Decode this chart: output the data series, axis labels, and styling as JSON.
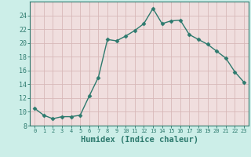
{
  "xlabel": "Humidex (Indice chaleur)",
  "x": [
    0,
    1,
    2,
    3,
    4,
    5,
    6,
    7,
    8,
    9,
    10,
    11,
    12,
    13,
    14,
    15,
    16,
    17,
    18,
    19,
    20,
    21,
    22,
    23
  ],
  "y": [
    10.5,
    9.5,
    9.0,
    9.3,
    9.3,
    9.5,
    12.3,
    15.0,
    20.5,
    20.3,
    21.0,
    21.8,
    22.8,
    25.0,
    22.8,
    23.2,
    23.3,
    21.2,
    20.5,
    19.8,
    18.8,
    17.8,
    15.8,
    14.3
  ],
  "line_color": "#2d7a6e",
  "marker": "D",
  "marker_size": 2.5,
  "linewidth": 1.0,
  "fig_bg_color": "#cceee8",
  "plot_bg_color": "#f0dede",
  "grid_color": "#d8b8b8",
  "spine_color": "#2d7a6e",
  "ylim": [
    8,
    26
  ],
  "xlim": [
    -0.5,
    23.5
  ],
  "yticks": [
    8,
    10,
    12,
    14,
    16,
    18,
    20,
    22,
    24
  ],
  "xticks": [
    0,
    1,
    2,
    3,
    4,
    5,
    6,
    7,
    8,
    9,
    10,
    11,
    12,
    13,
    14,
    15,
    16,
    17,
    18,
    19,
    20,
    21,
    22,
    23
  ],
  "xtick_fontsize": 5.0,
  "ytick_fontsize": 6.0,
  "xlabel_fontsize": 7.5,
  "tick_color": "#2d7a6e",
  "xlabel_color": "#2d7a6e"
}
